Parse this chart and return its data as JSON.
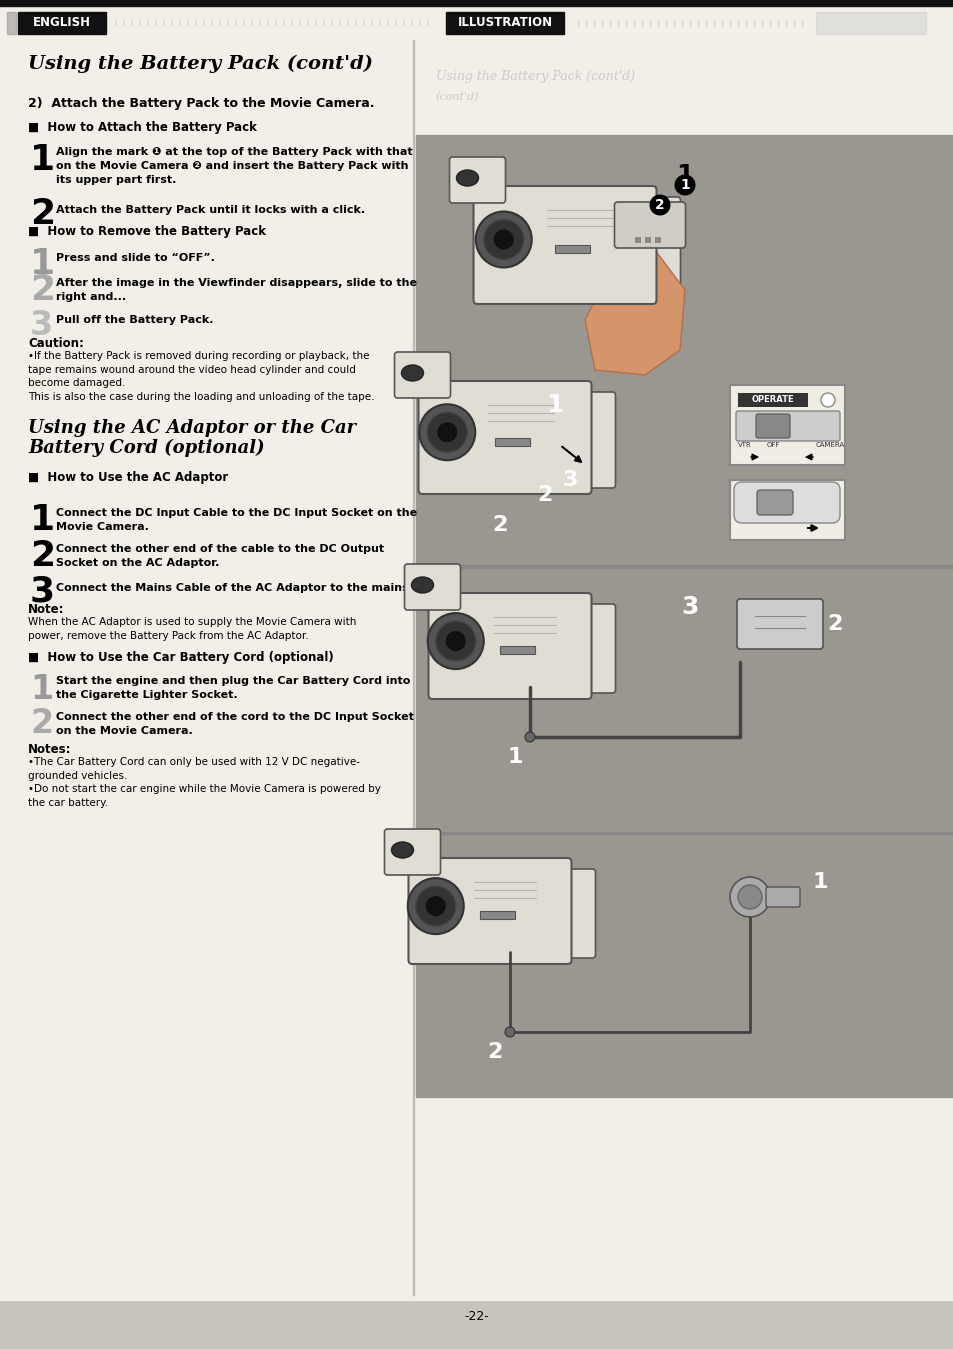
{
  "page_bg": "#c8c4bc",
  "content_bg": "#f2efe9",
  "header_bg": "#000000",
  "header_text_color": "#ffffff",
  "header_left": "ENGLISH",
  "header_right": "ILLUSTRATION",
  "title1": "Using the Battery Pack (cont'd)",
  "section1_heading": "2)  Attach the Battery Pack to the Movie Camera.",
  "subsection1": "■  How to Attach the Battery Pack",
  "step1_text": "Align the mark ❶ at the top of the Battery Pack with that\non the Movie Camera ❷ and insert the Battery Pack with\nits upper part first.",
  "step2_text": "Attach the Battery Pack until it locks with a click.",
  "subsection2": "■  How to Remove the Battery Pack",
  "step3_text": "Press and slide to “OFF”.",
  "step4_text": "After the image in the Viewfinder disappears, slide to the\nright and...",
  "step5_text": "Pull off the Battery Pack.",
  "caution_head": "Caution:",
  "caution_text": "•If the Battery Pack is removed during recording or playback, the\ntape remains wound around the video head cylinder and could\nbecome damaged.\nThis is also the case during the loading and unloading of the tape.",
  "title2_line1": "Using the AC Adaptor or the Car",
  "title2_line2": "Battery Cord (optional)",
  "subsection3": "■  How to Use the AC Adaptor",
  "step6_text": "Connect the DC Input Cable to the DC Input Socket on the\nMovie Camera.",
  "step7_text": "Connect the other end of the cable to the DC Output\nSocket on the AC Adaptor.",
  "step8_text": "Connect the Mains Cable of the AC Adaptor to the mains.",
  "note1_head": "Note:",
  "note1_text": "When the AC Adaptor is used to supply the Movie Camera with\npower, remove the Battery Pack from the AC Adaptor.",
  "subsection4": "■  How to Use the Car Battery Cord (optional)",
  "step9_text": "Start the engine and then plug the Car Battery Cord into\nthe Cigarette Lighter Socket.",
  "step10_text": "Connect the other end of the cord to the DC Input Socket\non the Movie Camera.",
  "notes2_head": "Notes:",
  "notes2_text": "•The Car Battery Cord can only be used with 12 V DC negative-\ngrounded vehicles.\n•Do not start the car engine while the Movie Camera is powered by\nthe car battery.",
  "page_num": "-22-",
  "illus_bg": "#9a9690",
  "illus_border": "#7a7670",
  "camera_color": "#e8e4dc",
  "camera_shadow": "#a0a098",
  "divider_line": "#666666"
}
